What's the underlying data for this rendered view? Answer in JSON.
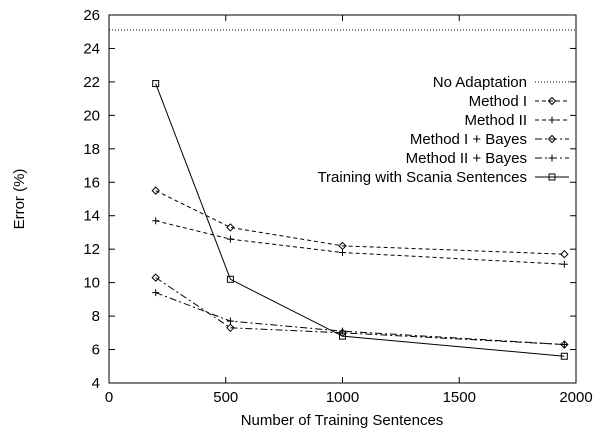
{
  "chart_data": {
    "type": "line",
    "xlabel": "Number of Training Sentences",
    "ylabel": "Error (%)",
    "xlim": [
      0,
      2000
    ],
    "ylim": [
      4,
      26
    ],
    "x_ticks": [
      0,
      500,
      1000,
      1500,
      2000
    ],
    "y_ticks": [
      4,
      6,
      8,
      10,
      12,
      14,
      16,
      18,
      20,
      22,
      24,
      26
    ],
    "grid": false,
    "legend_position": "right",
    "series": [
      {
        "name": "No Adaptation",
        "style": "dotted",
        "marker": "none",
        "x": [
          0,
          2000
        ],
        "y": [
          25.1,
          25.1
        ]
      },
      {
        "name": "Method I",
        "style": "dashed",
        "marker": "diamond",
        "x": [
          200,
          520,
          1000,
          1950
        ],
        "y": [
          15.5,
          13.3,
          12.2,
          11.7
        ]
      },
      {
        "name": "Method II",
        "style": "dashed",
        "marker": "plus",
        "x": [
          200,
          520,
          1000,
          1950
        ],
        "y": [
          13.7,
          12.6,
          11.8,
          11.1
        ]
      },
      {
        "name": "Method I + Bayes",
        "style": "dashdot",
        "marker": "diamond",
        "x": [
          200,
          520,
          1000,
          1950
        ],
        "y": [
          10.3,
          7.3,
          7.0,
          6.3
        ]
      },
      {
        "name": "Method II + Bayes",
        "style": "dashdot",
        "marker": "plus",
        "x": [
          200,
          520,
          1000,
          1950
        ],
        "y": [
          9.4,
          7.7,
          7.1,
          6.3
        ]
      },
      {
        "name": "Training with Scania Sentences",
        "style": "solid",
        "marker": "square",
        "x": [
          200,
          520,
          1000,
          1950
        ],
        "y": [
          21.9,
          10.2,
          6.8,
          5.6
        ]
      }
    ]
  }
}
